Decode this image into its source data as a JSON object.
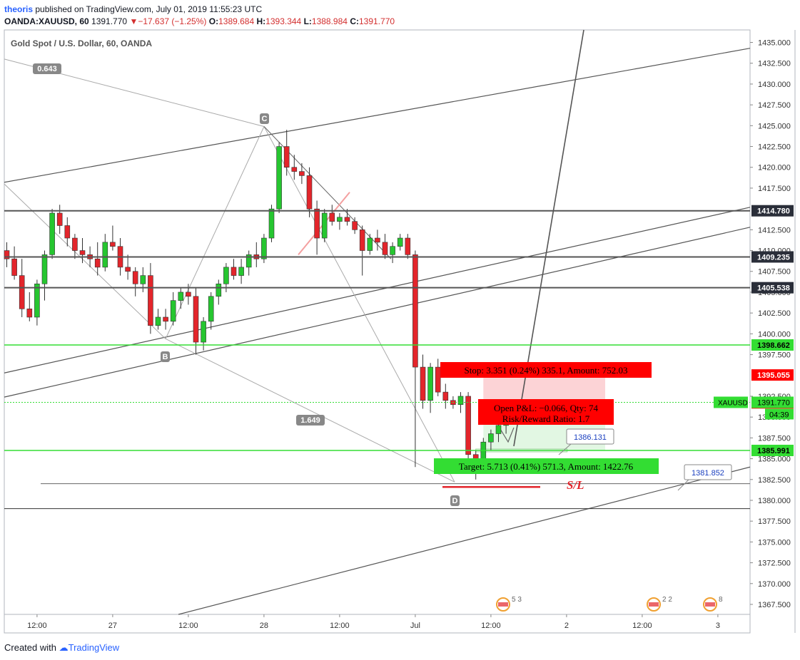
{
  "header": {
    "author": "theoris",
    "published_text": " published on TradingView.com, July 01, 2019 11:55:23 UTC"
  },
  "symbol_bar": {
    "symbol": "OANDA:XAUUSD, 60",
    "last": "1391.770",
    "arrow": "▼",
    "change": "−17.637 (−1.25%)",
    "o_label": "O:",
    "o": "1389.684",
    "h_label": "H:",
    "h": "1393.344",
    "l_label": "L:",
    "l": "1388.984",
    "c_label": "C:",
    "c": "1391.770"
  },
  "chart_title": "Gold Spot / U.S. Dollar, 60, OANDA",
  "footer": {
    "created_with": "Created with",
    "brand": "TradingView"
  },
  "colors": {
    "up": "#26c630",
    "down": "#e3252b",
    "grid_level": "#555555",
    "green_level": "#33dd33",
    "stop_fill": "#fcd3d6",
    "target_fill": "#e2f7e3",
    "label_red": "#ff0000",
    "label_green": "#33dd33"
  },
  "chart_data": {
    "type": "candlestick",
    "symbol": "XAUUSD",
    "ylim": [
      1366.3,
      1436.5
    ],
    "y_ticks": [
      1367.5,
      1370.0,
      1372.5,
      1375.0,
      1377.5,
      1380.0,
      1382.5,
      1385.0,
      1387.5,
      1390.0,
      1392.5,
      1397.5,
      1400.0,
      1402.5,
      1405.0,
      1407.5,
      1410.0,
      1412.5,
      1417.5,
      1420.0,
      1422.5,
      1425.0,
      1427.5,
      1430.0,
      1432.5,
      1435.0
    ],
    "x_ticks": [
      {
        "label": "12:00",
        "index": 4
      },
      {
        "label": "27",
        "index": 14
      },
      {
        "label": "12:00",
        "index": 24
      },
      {
        "label": "28",
        "index": 34
      },
      {
        "label": "12:00",
        "index": 44
      },
      {
        "label": "Jul",
        "index": 54
      },
      {
        "label": "12:00",
        "index": 64
      },
      {
        "label": "2",
        "index": 74
      },
      {
        "label": "12:00",
        "index": 84
      },
      {
        "label": "3",
        "index": 94
      }
    ],
    "candles": [
      [
        1410.0,
        1411.0,
        1408.0,
        1409.0
      ],
      [
        1409.0,
        1410.5,
        1406.5,
        1407.0
      ],
      [
        1407.0,
        1409.0,
        1402.0,
        1403.0
      ],
      [
        1403.0,
        1405.0,
        1401.5,
        1402.0
      ],
      [
        1402.0,
        1406.5,
        1401.0,
        1406.0
      ],
      [
        1406.0,
        1410.0,
        1404.0,
        1409.5
      ],
      [
        1409.5,
        1415.0,
        1409.0,
        1414.5
      ],
      [
        1414.5,
        1415.5,
        1412.0,
        1413.0
      ],
      [
        1413.0,
        1414.0,
        1410.5,
        1411.5
      ],
      [
        1411.5,
        1412.0,
        1409.0,
        1410.0
      ],
      [
        1410.0,
        1411.5,
        1408.5,
        1409.5
      ],
      [
        1409.5,
        1410.5,
        1408.0,
        1409.0
      ],
      [
        1409.0,
        1411.0,
        1407.0,
        1408.0
      ],
      [
        1408.0,
        1412.0,
        1407.5,
        1411.0
      ],
      [
        1411.0,
        1413.0,
        1410.0,
        1410.5
      ],
      [
        1410.5,
        1411.5,
        1407.0,
        1408.0
      ],
      [
        1408.0,
        1409.5,
        1406.5,
        1407.5
      ],
      [
        1407.5,
        1408.0,
        1404.5,
        1406.0
      ],
      [
        1406.0,
        1408.0,
        1405.0,
        1407.0
      ],
      [
        1407.0,
        1408.5,
        1400.0,
        1401.0
      ],
      [
        1401.0,
        1403.0,
        1400.5,
        1402.0
      ],
      [
        1402.0,
        1403.0,
        1400.5,
        1401.5
      ],
      [
        1401.5,
        1405.0,
        1401.0,
        1404.0
      ],
      [
        1404.0,
        1405.5,
        1403.0,
        1405.0
      ],
      [
        1405.0,
        1406.0,
        1403.5,
        1404.5
      ],
      [
        1404.5,
        1405.5,
        1397.5,
        1399.0
      ],
      [
        1399.0,
        1402.0,
        1398.0,
        1401.5
      ],
      [
        1401.5,
        1405.0,
        1400.5,
        1404.5
      ],
      [
        1404.5,
        1406.5,
        1403.5,
        1406.0
      ],
      [
        1406.0,
        1408.5,
        1405.0,
        1408.0
      ],
      [
        1408.0,
        1409.0,
        1406.5,
        1407.0
      ],
      [
        1407.0,
        1409.0,
        1406.0,
        1408.0
      ],
      [
        1408.0,
        1410.0,
        1407.0,
        1409.5
      ],
      [
        1409.5,
        1411.0,
        1408.0,
        1409.0
      ],
      [
        1409.0,
        1412.0,
        1408.5,
        1411.5
      ],
      [
        1411.5,
        1415.5,
        1411.0,
        1415.0
      ],
      [
        1415.0,
        1423.0,
        1414.5,
        1422.5
      ],
      [
        1422.5,
        1424.5,
        1419.0,
        1420.0
      ],
      [
        1420.0,
        1421.5,
        1418.5,
        1419.5
      ],
      [
        1419.5,
        1420.5,
        1418.0,
        1419.0
      ],
      [
        1419.0,
        1420.0,
        1414.0,
        1415.0
      ],
      [
        1415.0,
        1416.0,
        1409.5,
        1411.5
      ],
      [
        1411.5,
        1415.0,
        1411.0,
        1414.5
      ],
      [
        1414.5,
        1415.5,
        1413.0,
        1413.5
      ],
      [
        1413.5,
        1414.5,
        1412.5,
        1414.0
      ],
      [
        1414.0,
        1415.0,
        1413.0,
        1413.5
      ],
      [
        1413.5,
        1414.0,
        1412.0,
        1412.5
      ],
      [
        1412.5,
        1413.0,
        1407.0,
        1410.0
      ],
      [
        1410.0,
        1412.0,
        1409.5,
        1411.5
      ],
      [
        1411.5,
        1412.5,
        1410.0,
        1411.0
      ],
      [
        1411.0,
        1412.0,
        1409.0,
        1409.5
      ],
      [
        1409.5,
        1411.0,
        1408.5,
        1410.5
      ],
      [
        1410.5,
        1412.0,
        1410.0,
        1411.5
      ],
      [
        1411.5,
        1412.0,
        1409.0,
        1409.5
      ],
      [
        1409.5,
        1410.0,
        1384.0,
        1396.0
      ],
      [
        1396.0,
        1397.5,
        1391.0,
        1392.0
      ],
      [
        1392.0,
        1396.5,
        1390.5,
        1396.0
      ],
      [
        1396.0,
        1397.0,
        1392.5,
        1393.0
      ],
      [
        1393.0,
        1394.0,
        1391.0,
        1392.0
      ],
      [
        1392.0,
        1392.5,
        1391.0,
        1391.5
      ],
      [
        1391.5,
        1393.0,
        1390.5,
        1392.5
      ],
      [
        1392.5,
        1393.0,
        1384.5,
        1385.5
      ],
      [
        1385.5,
        1386.0,
        1382.5,
        1384.0
      ],
      [
        1384.0,
        1387.5,
        1383.5,
        1387.0
      ],
      [
        1387.0,
        1388.5,
        1386.0,
        1388.0
      ],
      [
        1388.0,
        1389.5,
        1387.0,
        1389.0
      ],
      [
        1389.0,
        1390.5,
        1388.0,
        1389.684
      ]
    ],
    "price_lines": [
      {
        "value": 1414.78,
        "label": "1414.780",
        "color": "#555555",
        "axis_bg": "#2a2e39"
      },
      {
        "value": 1409.235,
        "label": "1409.235",
        "color": "#555555",
        "axis_bg": "#2a2e39"
      },
      {
        "value": 1405.538,
        "label": "1405.538",
        "color": "#555555",
        "axis_bg": "#2a2e39"
      },
      {
        "value": 1398.662,
        "label": "1398.662",
        "color": "#33dd33",
        "axis_bg": "#33dd33"
      },
      {
        "value": 1395.055,
        "label": "1395.055",
        "color": "#ff0000",
        "axis_bg": "#ff0000"
      },
      {
        "value": 1391.704,
        "label": "1391.704",
        "color": "#ff0000",
        "axis_bg": "#ff0000"
      },
      {
        "value": 1385.991,
        "label": "1385.991",
        "color": "#33dd33",
        "axis_bg": "#33dd33"
      }
    ],
    "current_price": {
      "value": 1391.77,
      "label": "1391.770",
      "tag": "XAUUSD",
      "countdown": "04:39"
    },
    "support_line": 1382.0,
    "lower_line": 1379.0,
    "pattern_points": {
      "X": "0.643",
      "B": "B",
      "C": "C",
      "D": "D",
      "ratio_low": "1.649"
    },
    "position": {
      "stop_text": "Stop: 3.351 (0.24%) 335.1, Amount: 752.03",
      "pnl_text": "Open P&L: −0.066, Qty: 74",
      "rr_text": "Risk/Reward Ratio: 1.7",
      "target_text": "Target: 5.713 (0.41%) 571.3, Amount: 1422.76",
      "entry": 1391.704,
      "stop": 1395.055,
      "target": 1385.991
    },
    "callouts": [
      {
        "text": "1386.131"
      },
      {
        "text": "1381.852"
      }
    ],
    "sl_label": "S/L",
    "events": [
      {
        "count": "5 3",
        "index": 65
      },
      {
        "count": "2 2",
        "index": 85
      },
      {
        "count": "8",
        "index": 92
      }
    ]
  }
}
